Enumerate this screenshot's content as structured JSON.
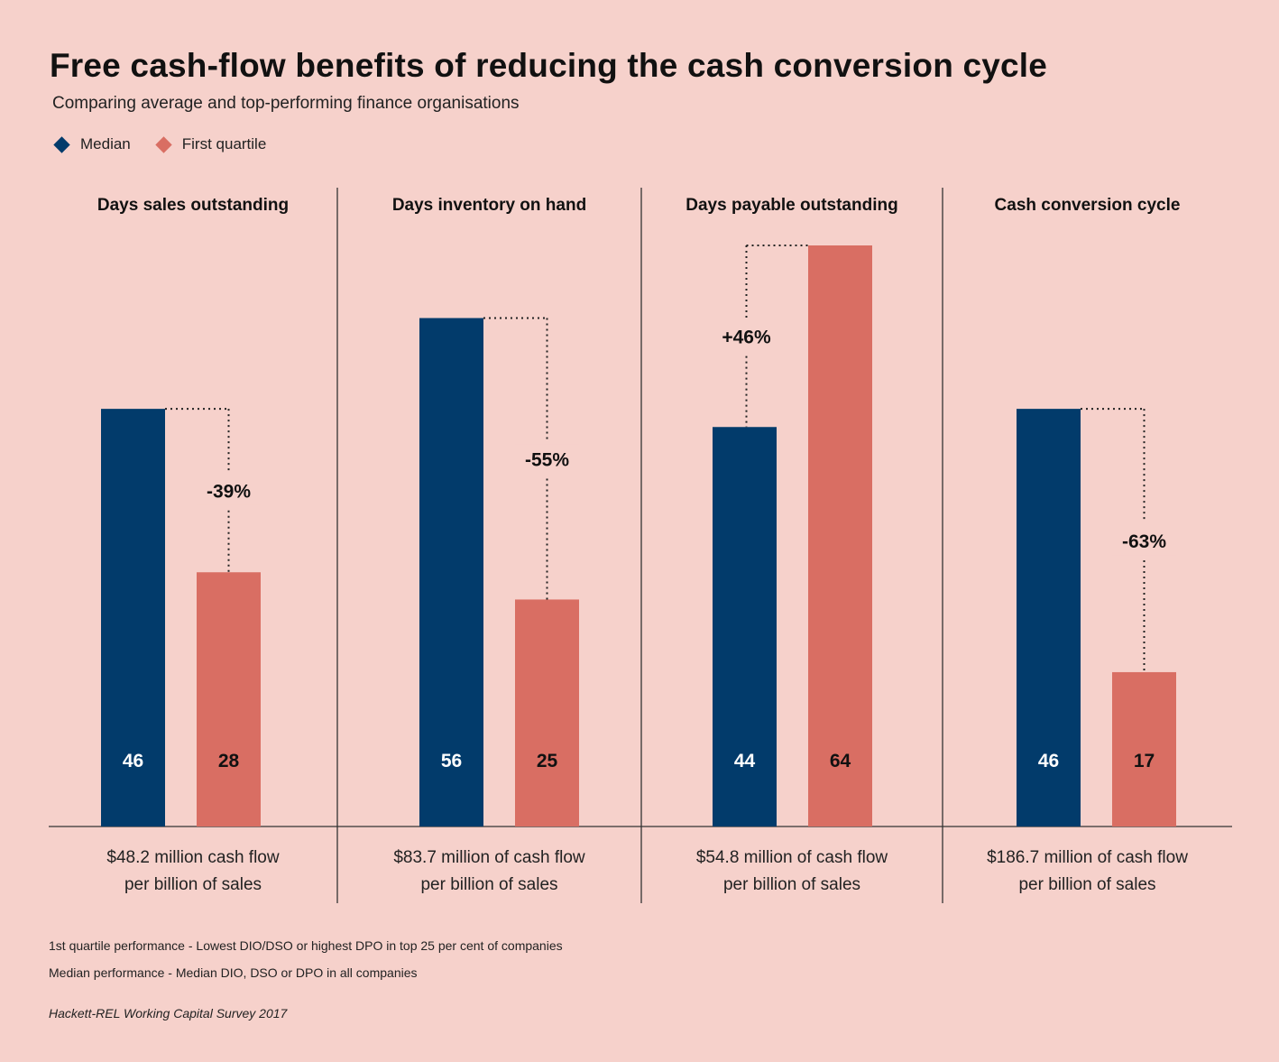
{
  "title": "Free cash-flow benefits of reducing the cash conversion cycle",
  "subtitle": "Comparing average and top-performing finance organisations",
  "legend": {
    "median": "Median",
    "first_quartile": "First quartile"
  },
  "colors": {
    "background": "#f6d1cb",
    "median": "#023b6b",
    "first_quartile": "#d96e63"
  },
  "chart_data": {
    "type": "bar",
    "ylim": [
      0,
      78
    ],
    "series_names": [
      "Median",
      "First quartile"
    ],
    "panels": [
      {
        "title": "Days sales outstanding",
        "median": 46,
        "first_quartile": 28,
        "change": "-39%",
        "footer_line1": "$48.2 million  cash flow",
        "footer_line2": "per billion of sales"
      },
      {
        "title": "Days inventory on hand",
        "median": 56,
        "first_quartile": 25,
        "change": "-55%",
        "footer_line1": "$83.7 million of cash flow",
        "footer_line2": "per billion of sales"
      },
      {
        "title": "Days payable outstanding",
        "median": 44,
        "first_quartile": 64,
        "change": "+46%",
        "footer_line1": "$54.8 million of cash flow",
        "footer_line2": "per billion of sales"
      },
      {
        "title": "Cash conversion cycle",
        "median": 46,
        "first_quartile": 17,
        "change": "-63%",
        "footer_line1": "$186.7 million of cash flow",
        "footer_line2": "per billion of sales"
      }
    ]
  },
  "footnotes": {
    "line1": "1st quartile performance - Lowest DIO/DSO or highest DPO in top 25 per cent of companies",
    "line2": "Median performance - Median DIO, DSO or DPO in all companies",
    "source": "Hackett-REL Working Capital Survey 2017"
  }
}
